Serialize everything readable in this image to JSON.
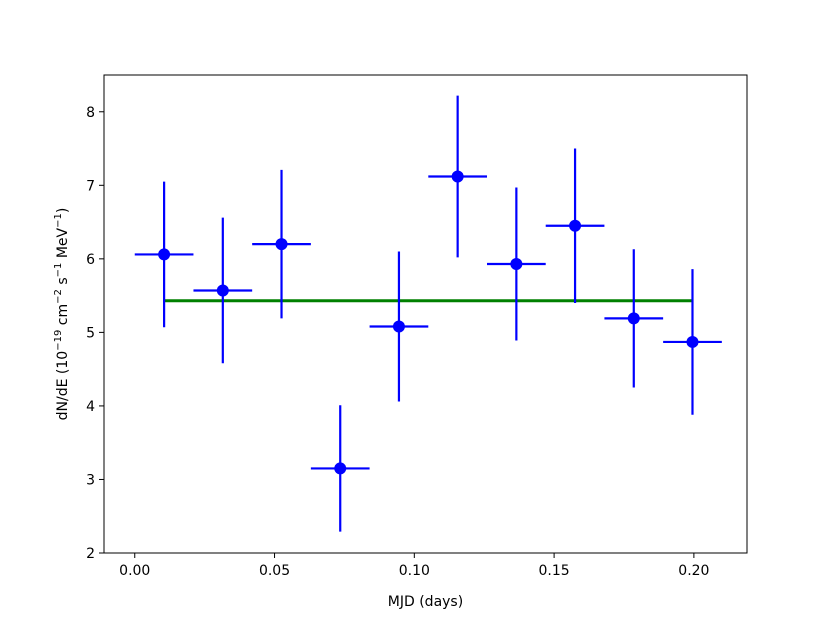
{
  "chart_data": {
    "type": "scatter",
    "title": "",
    "xlabel": "MJD (days)",
    "ylabel": {
      "prefix": "dN/dE (10",
      "exp1": "−19",
      "mid1": " cm",
      "exp2": "−2",
      "mid2": " s",
      "exp3": "−1",
      "suffix": " MeV",
      "exp4": "−1",
      "end": ")"
    },
    "xlim": [
      -0.011,
      0.219
    ],
    "ylim": [
      2.0,
      8.5
    ],
    "xticks": [
      {
        "value": 0.0,
        "label": "0.00"
      },
      {
        "value": 0.05,
        "label": "0.05"
      },
      {
        "value": 0.1,
        "label": "0.10"
      },
      {
        "value": 0.15,
        "label": "0.15"
      },
      {
        "value": 0.2,
        "label": "0.20"
      }
    ],
    "yticks": [
      {
        "value": 2,
        "label": "2"
      },
      {
        "value": 3,
        "label": "3"
      },
      {
        "value": 4,
        "label": "4"
      },
      {
        "value": 5,
        "label": "5"
      },
      {
        "value": 6,
        "label": "6"
      },
      {
        "value": 7,
        "label": "7"
      },
      {
        "value": 8,
        "label": "8"
      }
    ],
    "grid": false,
    "series": [
      {
        "color": "#0000ff",
        "points": [
          {
            "x": 0.0105,
            "y": 6.06,
            "xerr": 0.0105,
            "yerr": 0.99
          },
          {
            "x": 0.0315,
            "y": 5.57,
            "xerr": 0.0105,
            "yerr": 0.99
          },
          {
            "x": 0.0525,
            "y": 6.2,
            "xerr": 0.0105,
            "yerr": 1.01
          },
          {
            "x": 0.0735,
            "y": 3.15,
            "xerr": 0.0105,
            "yerr": 0.86
          },
          {
            "x": 0.0945,
            "y": 5.08,
            "xerr": 0.0105,
            "yerr": 1.02
          },
          {
            "x": 0.1155,
            "y": 7.12,
            "xerr": 0.0105,
            "yerr": 1.1
          },
          {
            "x": 0.1365,
            "y": 5.93,
            "xerr": 0.0105,
            "yerr": 1.04
          },
          {
            "x": 0.1575,
            "y": 6.45,
            "xerr": 0.0105,
            "yerr": 1.05
          },
          {
            "x": 0.1785,
            "y": 5.19,
            "xerr": 0.0105,
            "yerr": 0.94
          },
          {
            "x": 0.1995,
            "y": 4.87,
            "xerr": 0.0105,
            "yerr": 0.99
          }
        ]
      }
    ],
    "fit_line": {
      "color": "#008000",
      "x": [
        0.0105,
        0.1995
      ],
      "y": [
        5.43,
        5.43
      ]
    }
  }
}
